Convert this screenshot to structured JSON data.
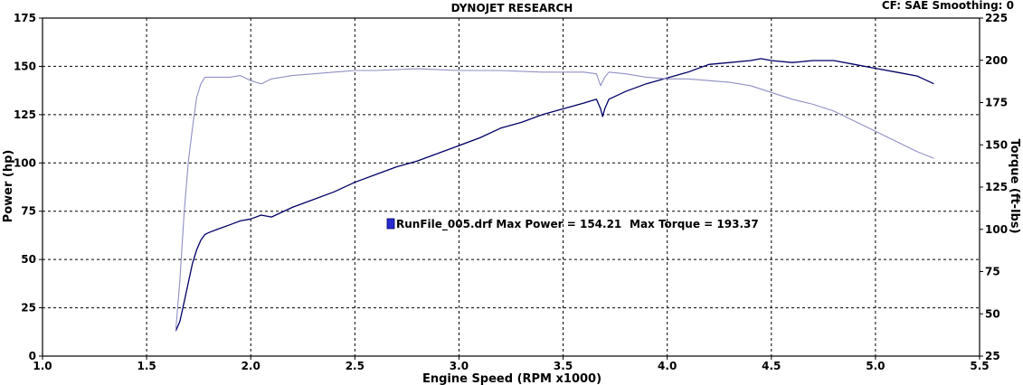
{
  "chart_data": {
    "type": "line",
    "title": "DYNOJET RESEARCH",
    "correction_info": "CF: SAE  Smoothing: 0",
    "xlabel": "Engine Speed (RPM x1000)",
    "ylabel": "Power (hp)",
    "y2label": "Torque (ft-lbs)",
    "xlim": [
      1.0,
      5.5
    ],
    "ylim": [
      0,
      175
    ],
    "y2lim": [
      25,
      225
    ],
    "x_ticks": [
      "1.0",
      "1.5",
      "2.0",
      "2.5",
      "3.0",
      "3.5",
      "4.0",
      "4.5",
      "5.0",
      "5.5"
    ],
    "y_ticks": [
      "0",
      "25",
      "50",
      "75",
      "100",
      "125",
      "150",
      "175"
    ],
    "y2_ticks": [
      "25",
      "50",
      "75",
      "100",
      "125",
      "150",
      "175",
      "200",
      "225"
    ],
    "grid": true,
    "colors": {
      "power": "#000066",
      "torque": "#8f8fc4",
      "legend_swatch": "#2a2ad0"
    },
    "annotation": {
      "file": "RunFile_005.drf",
      "max_power_label": "Max Power = 154.21",
      "max_torque_label": "Max Torque = 193.37"
    },
    "series": [
      {
        "key": "power",
        "axis": "left",
        "x": [
          1.64,
          1.66,
          1.68,
          1.7,
          1.72,
          1.74,
          1.76,
          1.78,
          1.8,
          1.85,
          1.9,
          1.95,
          2.0,
          2.05,
          2.1,
          2.2,
          2.3,
          2.4,
          2.5,
          2.6,
          2.7,
          2.8,
          2.9,
          3.0,
          3.1,
          3.2,
          3.3,
          3.4,
          3.5,
          3.6,
          3.66,
          3.68,
          3.69,
          3.7,
          3.72,
          3.8,
          3.9,
          4.0,
          4.1,
          4.2,
          4.3,
          4.4,
          4.45,
          4.5,
          4.6,
          4.7,
          4.8,
          4.9,
          5.0,
          5.1,
          5.2,
          5.28
        ],
        "y": [
          13,
          18,
          28,
          38,
          48,
          55,
          60,
          63,
          64,
          66,
          68,
          70,
          71,
          73,
          72,
          77,
          81,
          85,
          90,
          94,
          98,
          101,
          105,
          109,
          113,
          118,
          121,
          125,
          128,
          131,
          133,
          128,
          124,
          128,
          133,
          137,
          141,
          144,
          147,
          151,
          152,
          153,
          154,
          153,
          152,
          153,
          153,
          151,
          149,
          147,
          145,
          141
        ]
      },
      {
        "key": "torque",
        "axis": "right",
        "x": [
          1.64,
          1.66,
          1.68,
          1.7,
          1.72,
          1.74,
          1.76,
          1.78,
          1.8,
          1.9,
          1.95,
          2.0,
          2.05,
          2.1,
          2.2,
          2.3,
          2.4,
          2.5,
          2.6,
          2.8,
          3.0,
          3.2,
          3.4,
          3.6,
          3.66,
          3.68,
          3.7,
          3.72,
          3.8,
          3.9,
          4.0,
          4.1,
          4.2,
          4.3,
          4.4,
          4.5,
          4.6,
          4.7,
          4.8,
          4.9,
          5.0,
          5.1,
          5.2,
          5.28
        ],
        "y": [
          40,
          70,
          110,
          140,
          160,
          178,
          186,
          190,
          190,
          190,
          191,
          188,
          186,
          189,
          191,
          192,
          193,
          194,
          194,
          195,
          194,
          194,
          193,
          193,
          192,
          185,
          190,
          193,
          192,
          190,
          189,
          189,
          188,
          187,
          185,
          181,
          177,
          174,
          170,
          164,
          158,
          152,
          146,
          142
        ]
      }
    ]
  }
}
